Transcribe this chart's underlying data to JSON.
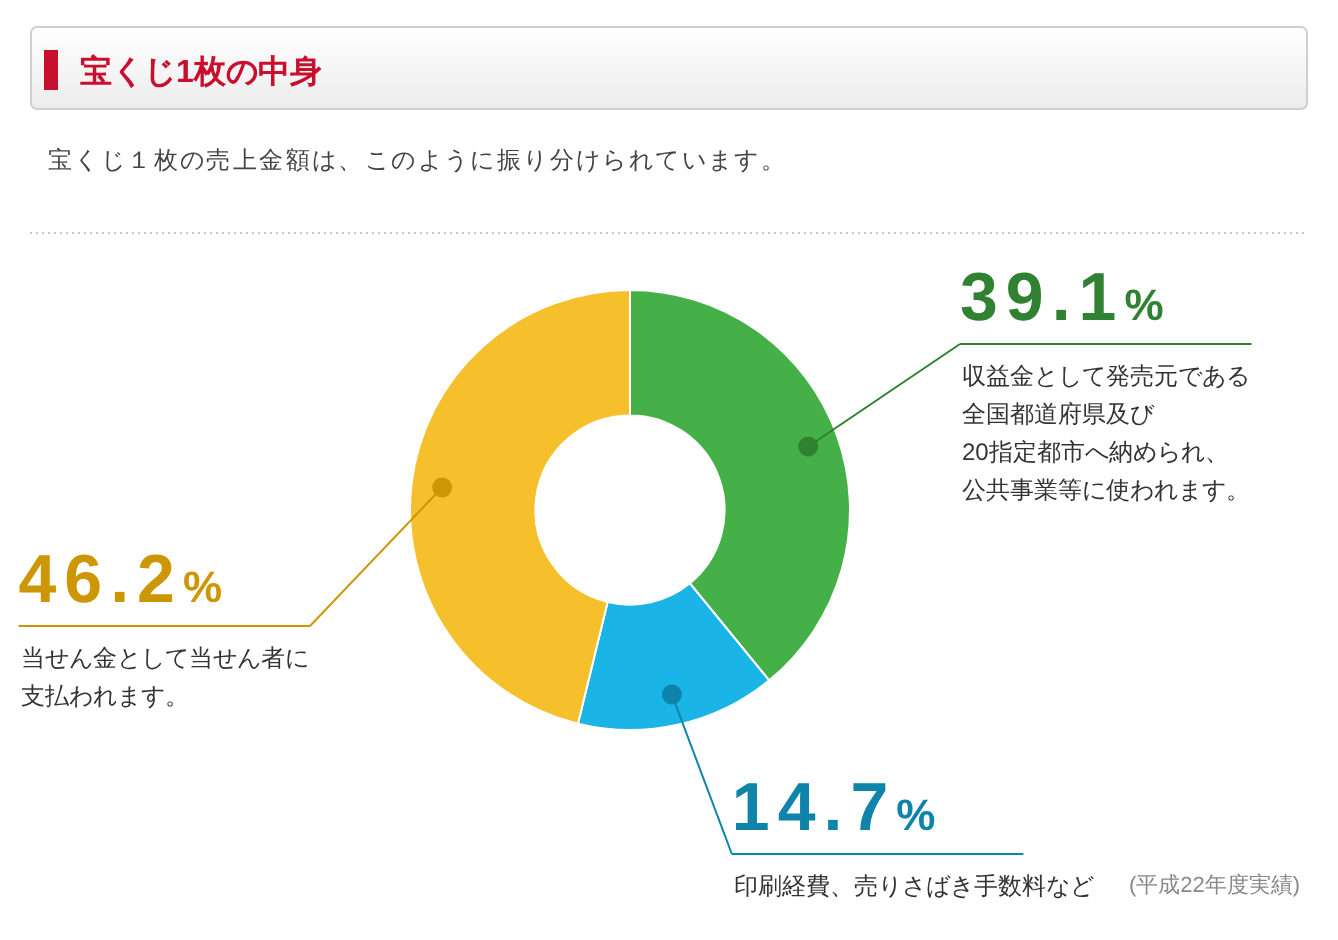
{
  "chart_data": {
    "type": "donut",
    "title": "宝くじ1枚の中身",
    "subtitle": "宝くじ１枚の売上金額は、このように振り分けられています。",
    "categories": [
      "収益金として発売元である全国都道府県及び20指定都市へ納められ、公共事業等に使われます。",
      "印刷経費、売りさばき手数料など",
      "当せん金として当せん者に支払われます。"
    ],
    "values": [
      39.1,
      14.7,
      46.2
    ],
    "colors": [
      "#45b048",
      "#1ab4e6",
      "#f6bf2c"
    ],
    "value_labels": [
      "39.1%",
      "14.7%",
      "46.2%"
    ],
    "annotations": [
      "(平成22年度実績)"
    ]
  }
}
